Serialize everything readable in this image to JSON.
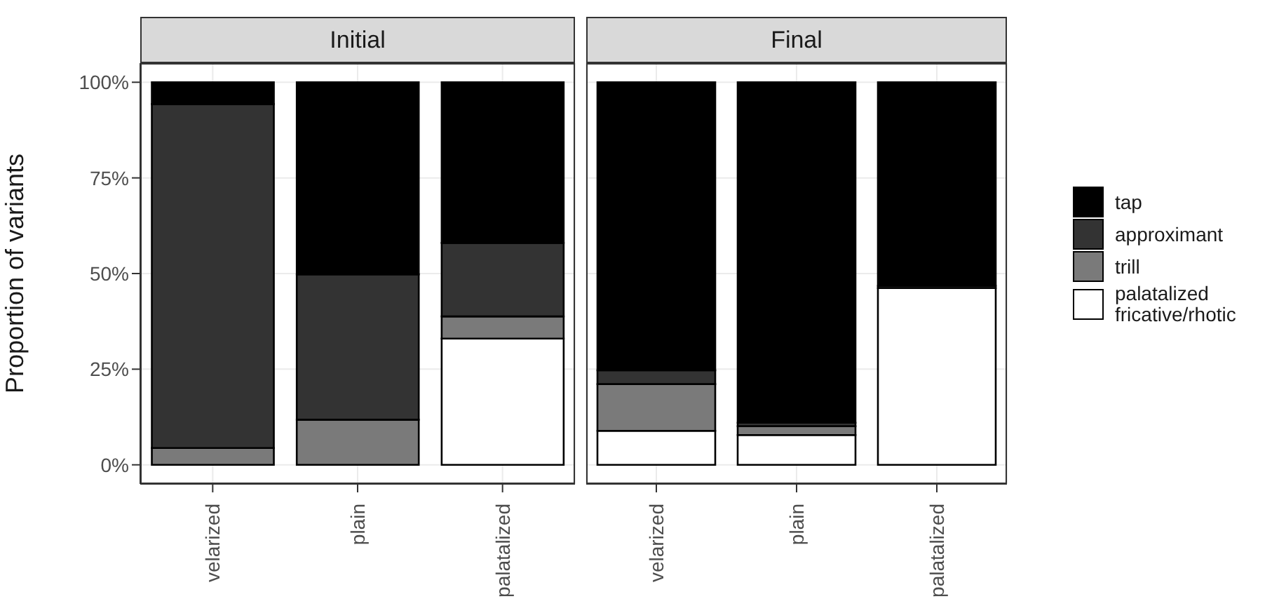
{
  "chart_data": [
    {
      "type": "bar",
      "title": "Initial",
      "ylabel": "Proportion of variants",
      "stacked": true,
      "grid": true,
      "legend": false,
      "categories": [
        "velarized",
        "plain",
        "palatalized"
      ],
      "ylim": [
        -5,
        105
      ],
      "yticks": [
        {
          "value": 0,
          "label": "0%"
        },
        {
          "value": 25,
          "label": "25%"
        },
        {
          "value": 50,
          "label": "50%"
        },
        {
          "value": 75,
          "label": "75%"
        },
        {
          "value": 100,
          "label": "100%"
        }
      ],
      "series": [
        {
          "color": "#ffffff",
          "values": [
            0,
            0,
            33
          ]
        },
        {
          "color": "#7a7a7a",
          "values": [
            4.4,
            11.8,
            5.8
          ]
        },
        {
          "color": "#333333",
          "values": [
            89.9,
            38,
            19.2
          ]
        },
        {
          "color": "#000000",
          "values": [
            5.7,
            50.2,
            42
          ]
        }
      ]
    },
    {
      "type": "bar",
      "title": "Final",
      "stacked": true,
      "grid": true,
      "legend": "right",
      "tick_labels": "x",
      "categories": [
        "velarized",
        "plain",
        "palatalized"
      ],
      "ylim": [
        -5,
        105
      ],
      "yticks": [
        {
          "value": 0,
          "label": null
        },
        {
          "value": 25,
          "label": null
        },
        {
          "value": 50,
          "label": null
        },
        {
          "value": 75,
          "label": null
        },
        {
          "value": 100,
          "label": null
        }
      ],
      "series": [
        {
          "name": "palatalized fricative/rhotic",
          "color": "#ffffff",
          "values": [
            8.9,
            7.8,
            46.2
          ]
        },
        {
          "name": "trill",
          "color": "#7a7a7a",
          "values": [
            12.2,
            2.3,
            0
          ]
        },
        {
          "name": "approximant",
          "color": "#333333",
          "values": [
            3.6,
            0.9,
            0.6
          ]
        },
        {
          "name": "tap",
          "color": "#000000",
          "values": [
            75.3,
            89,
            53.2
          ]
        }
      ]
    }
  ]
}
